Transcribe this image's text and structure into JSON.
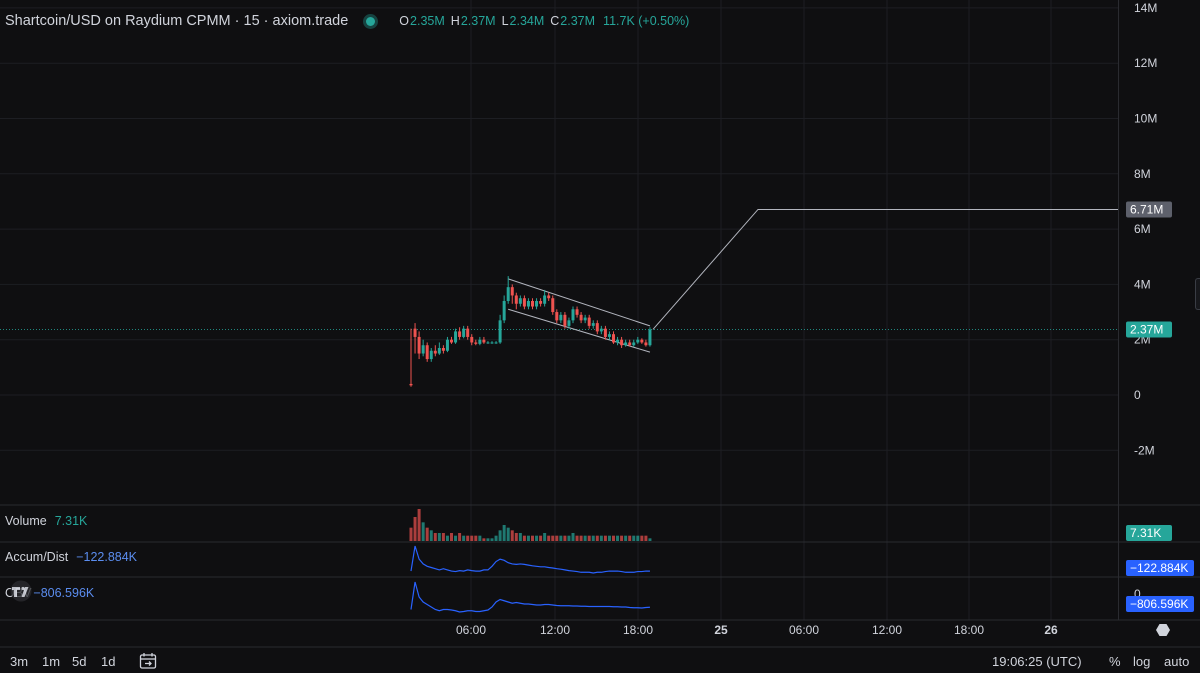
{
  "legend": {
    "title": "Shartcoin/USD on Raydium CPMM · 15 · axiom.trade",
    "open_key": "O",
    "open": "2.35M",
    "high_key": "H",
    "high": "2.37M",
    "low_key": "L",
    "low": "2.34M",
    "close_key": "C",
    "close": "2.37M",
    "change": "11.7K (+0.50%)"
  },
  "price_axis": {
    "ticks": [
      "14M",
      "12M",
      "10M",
      "8M",
      "6M",
      "4M",
      "2M",
      "0",
      "-2M"
    ],
    "line_label": "6.71M",
    "current_label": "2.37M"
  },
  "volume_pane": {
    "name": "Volume",
    "value": "7.31K",
    "axis_label": "7.31K"
  },
  "accum_pane": {
    "name": "Accum/Dist",
    "value": "−122.884K",
    "axis_label": "−122.884K"
  },
  "obv_pane": {
    "name": "OBV",
    "value": "−806.596K",
    "axis_tick": "0",
    "axis_label": "−806.596K"
  },
  "time_axis": {
    "labels": [
      "06:00",
      "12:00",
      "18:00",
      "25",
      "06:00",
      "12:00",
      "18:00",
      "26"
    ]
  },
  "bottom_bar": {
    "intervals": [
      "3m",
      "1m",
      "5d",
      "1d"
    ],
    "clock": "19:06:25 (UTC)",
    "percent": "%",
    "log": "log",
    "auto": "auto"
  },
  "icons": {
    "logo": "tradingview-logo-icon",
    "calendar": "calendar-goto-date-icon",
    "settings": "hexagon-settings-icon"
  },
  "colors": {
    "background": "#0f0f11",
    "up": "#26a69a",
    "down": "#ef5350",
    "indicator": "#2962ff",
    "current_price_badge": "#26a69a",
    "line_badge": "#5d606b",
    "indicator_badge": "#2962ff"
  },
  "chart_data": {
    "type": "candlestick",
    "ylim": [
      -3000000,
      14000000
    ],
    "series": [
      {
        "name": "",
        "values": [
          [
            0.4,
            0.35,
            2.4,
            0.3
          ],
          [
            2.4,
            2.1,
            2.6,
            1.5
          ],
          [
            2.1,
            1.5,
            2.3,
            1.3
          ],
          [
            1.5,
            1.8,
            2.0,
            1.4
          ],
          [
            1.8,
            1.3,
            1.9,
            1.2
          ],
          [
            1.3,
            1.6,
            1.7,
            1.2
          ],
          [
            1.6,
            1.5,
            1.8,
            1.4
          ],
          [
            1.5,
            1.7,
            1.9,
            1.45
          ],
          [
            1.7,
            1.6,
            1.8,
            1.5
          ],
          [
            1.6,
            2.0,
            2.1,
            1.55
          ],
          [
            2.0,
            1.9,
            2.1,
            1.85
          ],
          [
            1.9,
            2.3,
            2.4,
            1.85
          ],
          [
            2.3,
            2.1,
            2.45,
            2.0
          ],
          [
            2.1,
            2.4,
            2.5,
            2.05
          ],
          [
            2.4,
            2.1,
            2.5,
            2.0
          ],
          [
            2.1,
            1.9,
            2.2,
            1.8
          ],
          [
            1.9,
            1.85,
            2.0,
            1.8
          ],
          [
            1.85,
            2.0,
            2.1,
            1.8
          ],
          [
            2.0,
            1.9,
            2.1,
            1.85
          ],
          [
            1.9,
            1.9,
            1.95,
            1.85
          ],
          [
            1.9,
            1.9,
            1.95,
            1.85
          ],
          [
            1.9,
            1.9,
            1.95,
            1.85
          ],
          [
            1.9,
            2.7,
            2.9,
            1.85
          ],
          [
            2.7,
            3.4,
            3.6,
            2.6
          ],
          [
            3.4,
            3.9,
            4.3,
            3.3
          ],
          [
            3.9,
            3.6,
            4.0,
            3.3
          ],
          [
            3.6,
            3.3,
            3.7,
            3.1
          ],
          [
            3.3,
            3.5,
            3.6,
            3.2
          ],
          [
            3.5,
            3.2,
            3.6,
            3.1
          ],
          [
            3.2,
            3.4,
            3.5,
            3.1
          ],
          [
            3.4,
            3.2,
            3.5,
            3.1
          ],
          [
            3.2,
            3.4,
            3.5,
            3.1
          ],
          [
            3.4,
            3.3,
            3.5,
            3.2
          ],
          [
            3.3,
            3.6,
            3.8,
            3.2
          ],
          [
            3.6,
            3.5,
            3.7,
            3.4
          ],
          [
            3.5,
            3.0,
            3.6,
            2.9
          ],
          [
            3.0,
            2.7,
            3.1,
            2.6
          ],
          [
            2.7,
            2.9,
            3.0,
            2.6
          ],
          [
            2.9,
            2.5,
            3.0,
            2.4
          ],
          [
            2.5,
            2.7,
            2.8,
            2.4
          ],
          [
            2.7,
            3.1,
            3.2,
            2.6
          ],
          [
            3.1,
            2.9,
            3.2,
            2.8
          ],
          [
            2.9,
            2.7,
            3.0,
            2.6
          ],
          [
            2.7,
            2.8,
            2.9,
            2.6
          ],
          [
            2.8,
            2.5,
            2.9,
            2.4
          ],
          [
            2.5,
            2.6,
            2.7,
            2.4
          ],
          [
            2.6,
            2.3,
            2.7,
            2.2
          ],
          [
            2.3,
            2.4,
            2.5,
            2.2
          ],
          [
            2.4,
            2.1,
            2.5,
            2.0
          ],
          [
            2.1,
            2.2,
            2.3,
            2.0
          ],
          [
            2.2,
            1.9,
            2.3,
            1.85
          ],
          [
            1.9,
            2.0,
            2.1,
            1.8
          ],
          [
            2.0,
            1.8,
            2.1,
            1.7
          ],
          [
            1.8,
            1.9,
            2.0,
            1.75
          ],
          [
            1.9,
            1.8,
            2.0,
            1.75
          ],
          [
            1.8,
            1.9,
            2.0,
            1.75
          ],
          [
            1.9,
            2.0,
            2.1,
            1.85
          ],
          [
            2.0,
            1.9,
            2.05,
            1.85
          ],
          [
            1.9,
            1.8,
            2.0,
            1.75
          ],
          [
            1.8,
            2.37,
            2.45,
            1.75
          ]
        ]
      }
    ],
    "channel": {
      "upper": [
        [
          24,
          4.2
        ],
        [
          59,
          2.5
        ]
      ],
      "lower": [
        [
          24,
          3.1
        ],
        [
          59,
          1.55
        ]
      ]
    },
    "trend_line": {
      "points": [
        [
          59,
          2.37
        ],
        [
          67,
          6.71
        ],
        [
          86,
          6.71
        ]
      ]
    },
    "volume": [
      5,
      9,
      12,
      7,
      5,
      4,
      3,
      3,
      3,
      2,
      3,
      2,
      3,
      2,
      2,
      2,
      2,
      2,
      1,
      1,
      1,
      2,
      4,
      6,
      5,
      4,
      3,
      3,
      2,
      2,
      2,
      2,
      2,
      3,
      2,
      2,
      2,
      2,
      2,
      2,
      3,
      2,
      2,
      2,
      2,
      2,
      2,
      2,
      2,
      2,
      2,
      2,
      2,
      2,
      2,
      2,
      2,
      2,
      2,
      1
    ],
    "accum_dist": [
      -10,
      95,
      40,
      20,
      10,
      5,
      0,
      -5,
      0,
      -5,
      -10,
      -12,
      -8,
      -10,
      -5,
      -8,
      -10,
      -10,
      -5,
      -5,
      10,
      30,
      40,
      35,
      25,
      20,
      18,
      20,
      18,
      15,
      12,
      10,
      8,
      8,
      5,
      3,
      0,
      -2,
      -5,
      -8,
      -10,
      -12,
      -15,
      -15,
      -15,
      -18,
      -15,
      -15,
      -12,
      -10,
      -10,
      -10,
      -12,
      -15,
      -15,
      -15,
      -12,
      -12,
      -10,
      -10
    ],
    "obv": [
      -10,
      100,
      40,
      20,
      10,
      0,
      -10,
      -15,
      -10,
      -10,
      -12,
      -15,
      -20,
      -18,
      -15,
      -15,
      -18,
      -18,
      -15,
      -12,
      0,
      20,
      30,
      25,
      20,
      15,
      18,
      15,
      12,
      12,
      10,
      8,
      8,
      10,
      10,
      8,
      6,
      5,
      5,
      5,
      4,
      4,
      3,
      3,
      2,
      2,
      2,
      2,
      2,
      2,
      1,
      1,
      0,
      0,
      -2,
      -3,
      -3,
      -4,
      -2,
      -1
    ]
  }
}
